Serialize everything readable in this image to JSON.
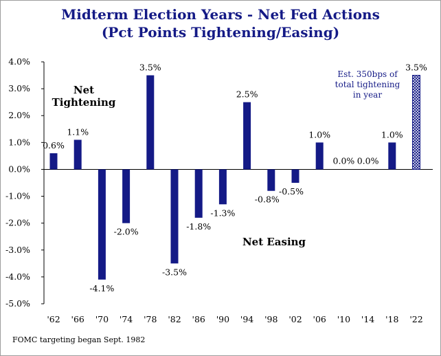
{
  "title_line1": "Midterm Election Years - Net Fed Actions",
  "title_line2": "(Pct Points Tightening/Easing)",
  "footnote": "FOMC targeting began Sept. 1982",
  "annotations": {
    "net_tightening_line1": "Net",
    "net_tightening_line2": "Tightening",
    "net_easing": "Net Easing",
    "estimate_line1": "Est. 350bps of",
    "estimate_line2": "total tightening",
    "estimate_line3": "in year"
  },
  "colors": {
    "bar": "#141a86",
    "title": "#141a86",
    "estimate_text": "#141a86"
  },
  "chart_data": {
    "type": "bar",
    "title": "Midterm Election Years - Net Fed Actions (Pct Points Tightening/Easing)",
    "categories": [
      "'62",
      "'66",
      "'70",
      "'74",
      "'78",
      "'82",
      "'86",
      "'90",
      "'94",
      "'98",
      "'02",
      "'06",
      "'10",
      "'14",
      "'18",
      "'22"
    ],
    "values": [
      0.6,
      1.1,
      -4.1,
      -2.0,
      3.5,
      -3.5,
      -1.8,
      -1.3,
      2.5,
      -0.8,
      -0.5,
      1.0,
      0.0,
      0.0,
      1.0,
      3.5
    ],
    "data_labels": [
      "0.6%",
      "1.1%",
      "-4.1%",
      "-2.0%",
      "3.5%",
      "-3.5%",
      "-1.8%",
      "-1.3%",
      "2.5%",
      "-0.8%",
      "-0.5%",
      "1.0%",
      "0.0%",
      "0.0%",
      "1.0%",
      "3.5%"
    ],
    "estimated": [
      false,
      false,
      false,
      false,
      false,
      false,
      false,
      false,
      false,
      false,
      false,
      false,
      false,
      false,
      false,
      true
    ],
    "ylim": [
      -5.0,
      4.0
    ],
    "yticks": [
      4.0,
      3.0,
      2.0,
      1.0,
      0.0,
      -1.0,
      -2.0,
      -3.0,
      -4.0,
      -5.0
    ],
    "ytick_labels": [
      "4.0%",
      "3.0%",
      "2.0%",
      "1.0%",
      "0.0%",
      "-1.0%",
      "-2.0%",
      "-3.0%",
      "-4.0%",
      "-5.0%"
    ],
    "xlabel": "",
    "ylabel": "",
    "grid": false,
    "legend": "none"
  }
}
